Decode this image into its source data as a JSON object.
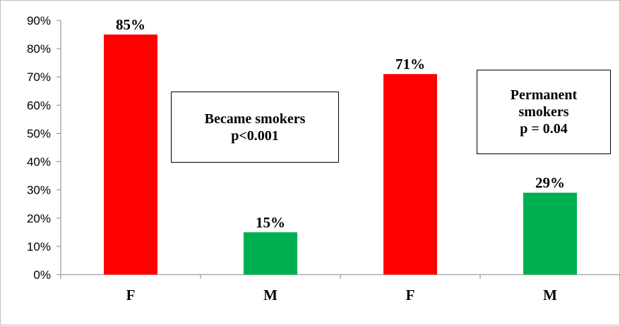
{
  "chart_data": {
    "type": "bar",
    "categories": [
      "F",
      "M",
      "F",
      "M"
    ],
    "values": [
      85,
      15,
      71,
      29
    ],
    "data_labels": [
      "85%",
      "15%",
      "71%",
      "29%"
    ],
    "bar_colors": [
      "#ff0000",
      "#00b050",
      "#ff0000",
      "#00b050"
    ],
    "ylim": [
      0,
      90
    ],
    "ytick_values": [
      0,
      10,
      20,
      30,
      40,
      50,
      60,
      70,
      80,
      90
    ],
    "ytick_labels": [
      "0%",
      "10%",
      "20%",
      "30%",
      "40%",
      "50%",
      "60%",
      "70%",
      "80%",
      "90%"
    ],
    "grid": false,
    "title": "",
    "xlabel": "",
    "ylabel": "",
    "annotations": [
      {
        "lines": [
          "Became smokers",
          "p<0.001"
        ]
      },
      {
        "lines": [
          "Permanent",
          "smokers",
          "p = 0.04"
        ]
      }
    ]
  }
}
